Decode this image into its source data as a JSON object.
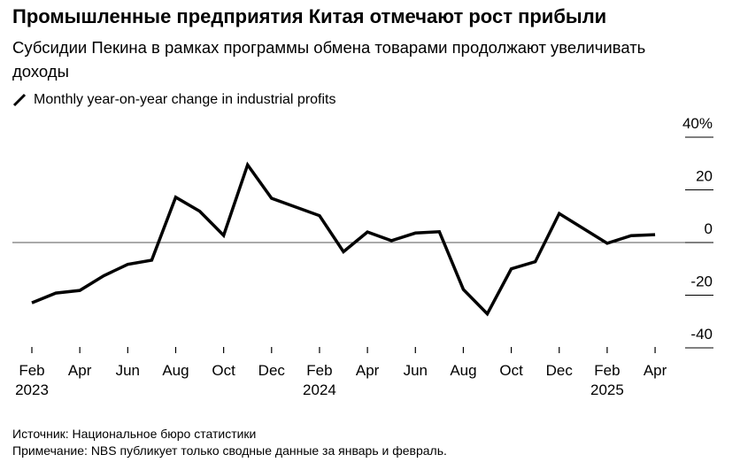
{
  "title": "Промышленные предприятия Китая отмечают рост прибыли",
  "subtitle": "Субсидии Пекина в рамках программы обмена товарами продолжают увеличивать доходы",
  "source": "Источник: Национальное бюро статистики",
  "note": "Примечание: NBS публикует только сводные данные за январь и февраль.",
  "chart_data": {
    "type": "line",
    "series": [
      {
        "name": "Monthly year-on-year change in industrial profits",
        "color": "#000000",
        "x": [
          "2023-02",
          "2023-03",
          "2023-04",
          "2023-05",
          "2023-06",
          "2023-07",
          "2023-08",
          "2023-09",
          "2023-10",
          "2023-11",
          "2023-12",
          "2024-02",
          "2024-03",
          "2024-04",
          "2024-05",
          "2024-06",
          "2024-07",
          "2024-08",
          "2024-09",
          "2024-10",
          "2024-11",
          "2024-12",
          "2025-02",
          "2025-03",
          "2025-04"
        ],
        "values": [
          -22.9,
          -19.2,
          -18.2,
          -12.6,
          -8.3,
          -6.7,
          17.2,
          11.9,
          2.7,
          29.5,
          16.8,
          10.2,
          -3.5,
          4.0,
          0.7,
          3.6,
          4.1,
          -17.8,
          -27.1,
          -10.0,
          -7.3,
          11.0,
          -0.3,
          2.6,
          3.0
        ]
      }
    ],
    "ylim": [
      -40,
      40
    ],
    "yticks": [
      {
        "v": 40,
        "label": "40%"
      },
      {
        "v": 20,
        "label": "20"
      },
      {
        "v": 0,
        "label": "0"
      },
      {
        "v": -20,
        "label": "-20"
      },
      {
        "v": -40,
        "label": "-40"
      }
    ],
    "xticks": [
      {
        "m": "2023-02",
        "label": "Feb",
        "year": "2023"
      },
      {
        "m": "2023-04",
        "label": "Apr"
      },
      {
        "m": "2023-06",
        "label": "Jun"
      },
      {
        "m": "2023-08",
        "label": "Aug"
      },
      {
        "m": "2023-10",
        "label": "Oct"
      },
      {
        "m": "2023-12",
        "label": "Dec"
      },
      {
        "m": "2024-02",
        "label": "Feb",
        "year": "2024"
      },
      {
        "m": "2024-04",
        "label": "Apr"
      },
      {
        "m": "2024-06",
        "label": "Jun"
      },
      {
        "m": "2024-08",
        "label": "Aug"
      },
      {
        "m": "2024-10",
        "label": "Oct"
      },
      {
        "m": "2024-12",
        "label": "Dec"
      },
      {
        "m": "2025-02",
        "label": "Feb",
        "year": "2025"
      },
      {
        "m": "2025-04",
        "label": "Apr"
      }
    ],
    "xlabel": "",
    "ylabel": ""
  }
}
